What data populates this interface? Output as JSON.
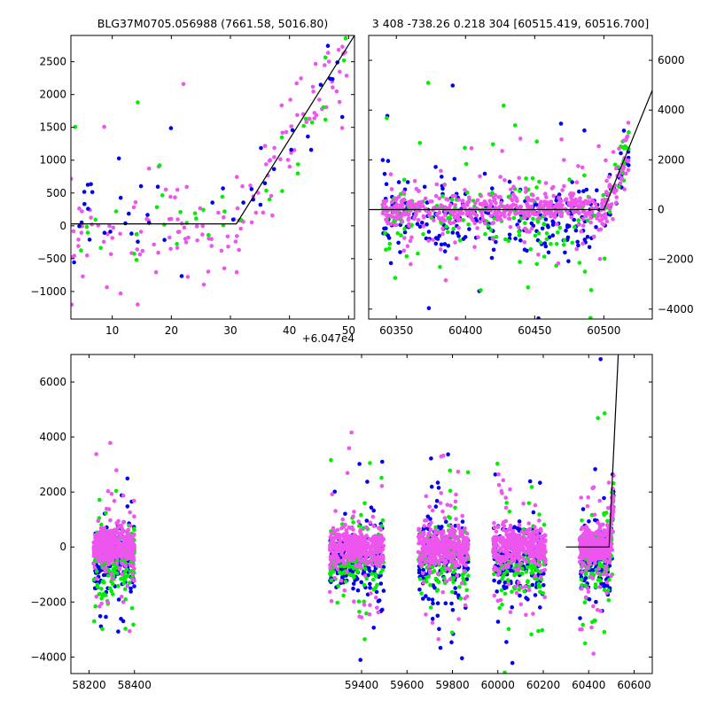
{
  "chart_data": [
    {
      "type": "scatter",
      "panel": "top-left",
      "title": "BLG37M0705.056988 (7661.58, 5016.80)",
      "x_offset_label": "+6.047e4",
      "xlim": [
        3,
        51
      ],
      "ylim": [
        -1420,
        2900
      ],
      "xticks": [
        10,
        20,
        30,
        40,
        50
      ],
      "yticks": [
        -1000,
        -500,
        0,
        500,
        1000,
        1500,
        2000,
        2500
      ],
      "ytick_side": "left",
      "model_line": {
        "x": [
          3,
          31,
          51
        ],
        "y": [
          30,
          30,
          2900
        ]
      },
      "series": [
        {
          "color": "#ee55ee",
          "seed": 11,
          "count": 150,
          "kind": "zoomA"
        },
        {
          "color": "#00ee00",
          "seed": 12,
          "count": 40,
          "kind": "zoomA"
        },
        {
          "color": "#0000ee",
          "seed": 13,
          "count": 45,
          "kind": "zoomA"
        }
      ]
    },
    {
      "type": "scatter",
      "panel": "top-right",
      "title": "3 408 -738.26 0.218 304 [60515.419, 60516.700]",
      "xlim": [
        60330,
        60535
      ],
      "ylim": [
        -4400,
        7000
      ],
      "xticks": [
        60350,
        60400,
        60450,
        60500
      ],
      "yticks": [
        -4000,
        -2000,
        0,
        2000,
        4000,
        6000
      ],
      "ytick_side": "right",
      "model_line": {
        "x": [
          60330,
          60500,
          60535
        ],
        "y": [
          0,
          0,
          4800
        ]
      },
      "series": [
        {
          "color": "#0000ee",
          "seed": 21,
          "count": 260,
          "kind": "zoomB"
        },
        {
          "color": "#00ee00",
          "seed": 22,
          "count": 200,
          "kind": "zoomB"
        },
        {
          "color": "#ee55ee",
          "seed": 23,
          "count": 560,
          "kind": "zoomB"
        }
      ]
    },
    {
      "type": "scatter",
      "panel": "bottom",
      "title": "",
      "xlim": [
        58120,
        60680
      ],
      "ylim": [
        -4600,
        7000
      ],
      "xticks": [
        58200,
        58400,
        59400,
        59600,
        59800,
        60000,
        60200,
        60400,
        60600
      ],
      "yticks": [
        -4000,
        -2000,
        0,
        2000,
        4000,
        6000
      ],
      "ytick_side": "left",
      "model_line": {
        "x": [
          60300,
          60490,
          60530
        ],
        "y": [
          0,
          0,
          7000
        ]
      },
      "seasons": [
        [
          58220,
          58400
        ],
        [
          59260,
          59500
        ],
        [
          59650,
          59870
        ],
        [
          59980,
          60210
        ],
        [
          60360,
          60510
        ]
      ],
      "series": [
        {
          "color": "#0000ee",
          "seed": 31,
          "count": 900,
          "kind": "full"
        },
        {
          "color": "#00ee00",
          "seed": 32,
          "count": 700,
          "kind": "full"
        },
        {
          "color": "#ee55ee",
          "seed": 33,
          "count": 2000,
          "kind": "full"
        }
      ]
    }
  ]
}
